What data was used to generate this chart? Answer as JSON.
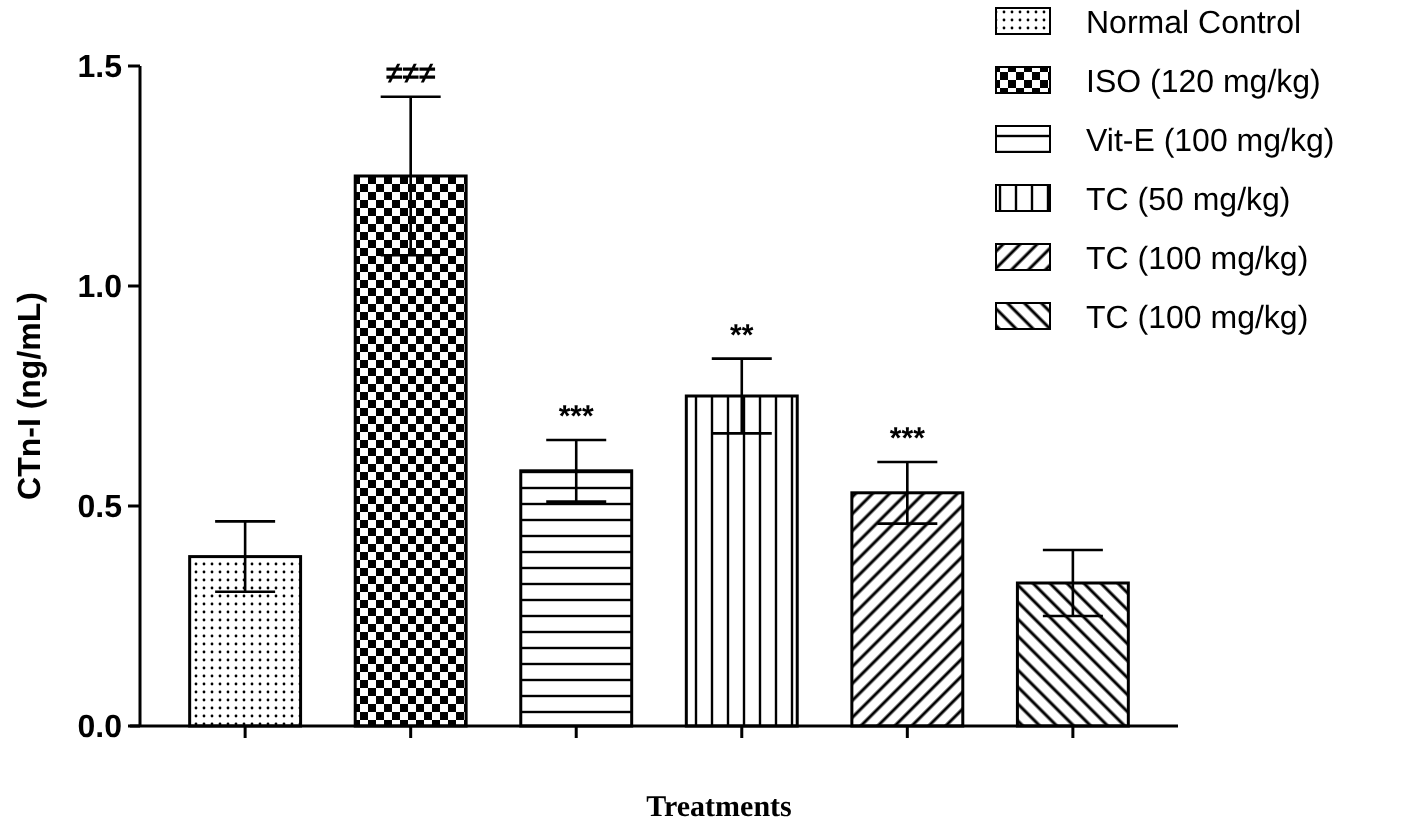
{
  "chart_data": {
    "type": "bar",
    "xlabel": "Treatments",
    "ylabel": "CTn-I (ng/mL)",
    "categories": [
      null,
      null,
      null,
      null,
      null,
      null
    ],
    "series": [
      {
        "name": "Normal Control",
        "color": "#000000",
        "values": [
          0.385,
          null,
          null,
          null,
          null,
          null
        ],
        "errors": [
          0.08,
          null,
          null,
          null,
          null,
          null
        ]
      },
      {
        "name": "ISO (120 mg/kg)",
        "color": "#000000",
        "values": [
          null,
          1.25,
          null,
          null,
          null,
          null
        ],
        "errors": [
          null,
          0.18,
          null,
          null,
          null,
          null
        ],
        "value_labels": [
          null,
          "≠≠≠",
          null,
          null,
          null,
          null
        ]
      },
      {
        "name": "Vit-E (100 mg/kg)",
        "color": "#000000",
        "values": [
          null,
          null,
          0.58,
          null,
          null,
          null
        ],
        "errors": [
          null,
          null,
          0.07,
          null,
          null,
          null
        ],
        "value_labels": [
          null,
          null,
          "***",
          null,
          null,
          null
        ]
      },
      {
        "name": "TC (50 mg/kg)",
        "color": "#000000",
        "values": [
          null,
          null,
          null,
          0.75,
          null,
          null
        ],
        "errors": [
          null,
          null,
          null,
          0.085,
          null,
          null
        ],
        "value_labels": [
          null,
          null,
          null,
          "**",
          null,
          null
        ]
      },
      {
        "name": "TC (100 mg/kg)",
        "color": "#000000",
        "values": [
          null,
          null,
          null,
          null,
          0.53,
          null
        ],
        "errors": [
          null,
          null,
          null,
          null,
          0.07,
          null
        ],
        "value_labels": [
          null,
          null,
          null,
          null,
          "***",
          null
        ]
      },
      {
        "name": "TC (100 mg/kg)",
        "color": "#000000",
        "values": [
          null,
          null,
          null,
          null,
          null,
          0.325
        ],
        "errors": [
          null,
          null,
          null,
          null,
          null,
          0.075
        ]
      }
    ],
    "ylim": [
      0,
      1.5
    ],
    "yticks": [
      {
        "value": 0,
        "label": "0.0"
      },
      {
        "value": 0.5,
        "label": "0.5"
      },
      {
        "value": 1,
        "label": "1.0"
      },
      {
        "value": 1.5,
        "label": "1.5"
      }
    ],
    "legend": "top right"
  }
}
